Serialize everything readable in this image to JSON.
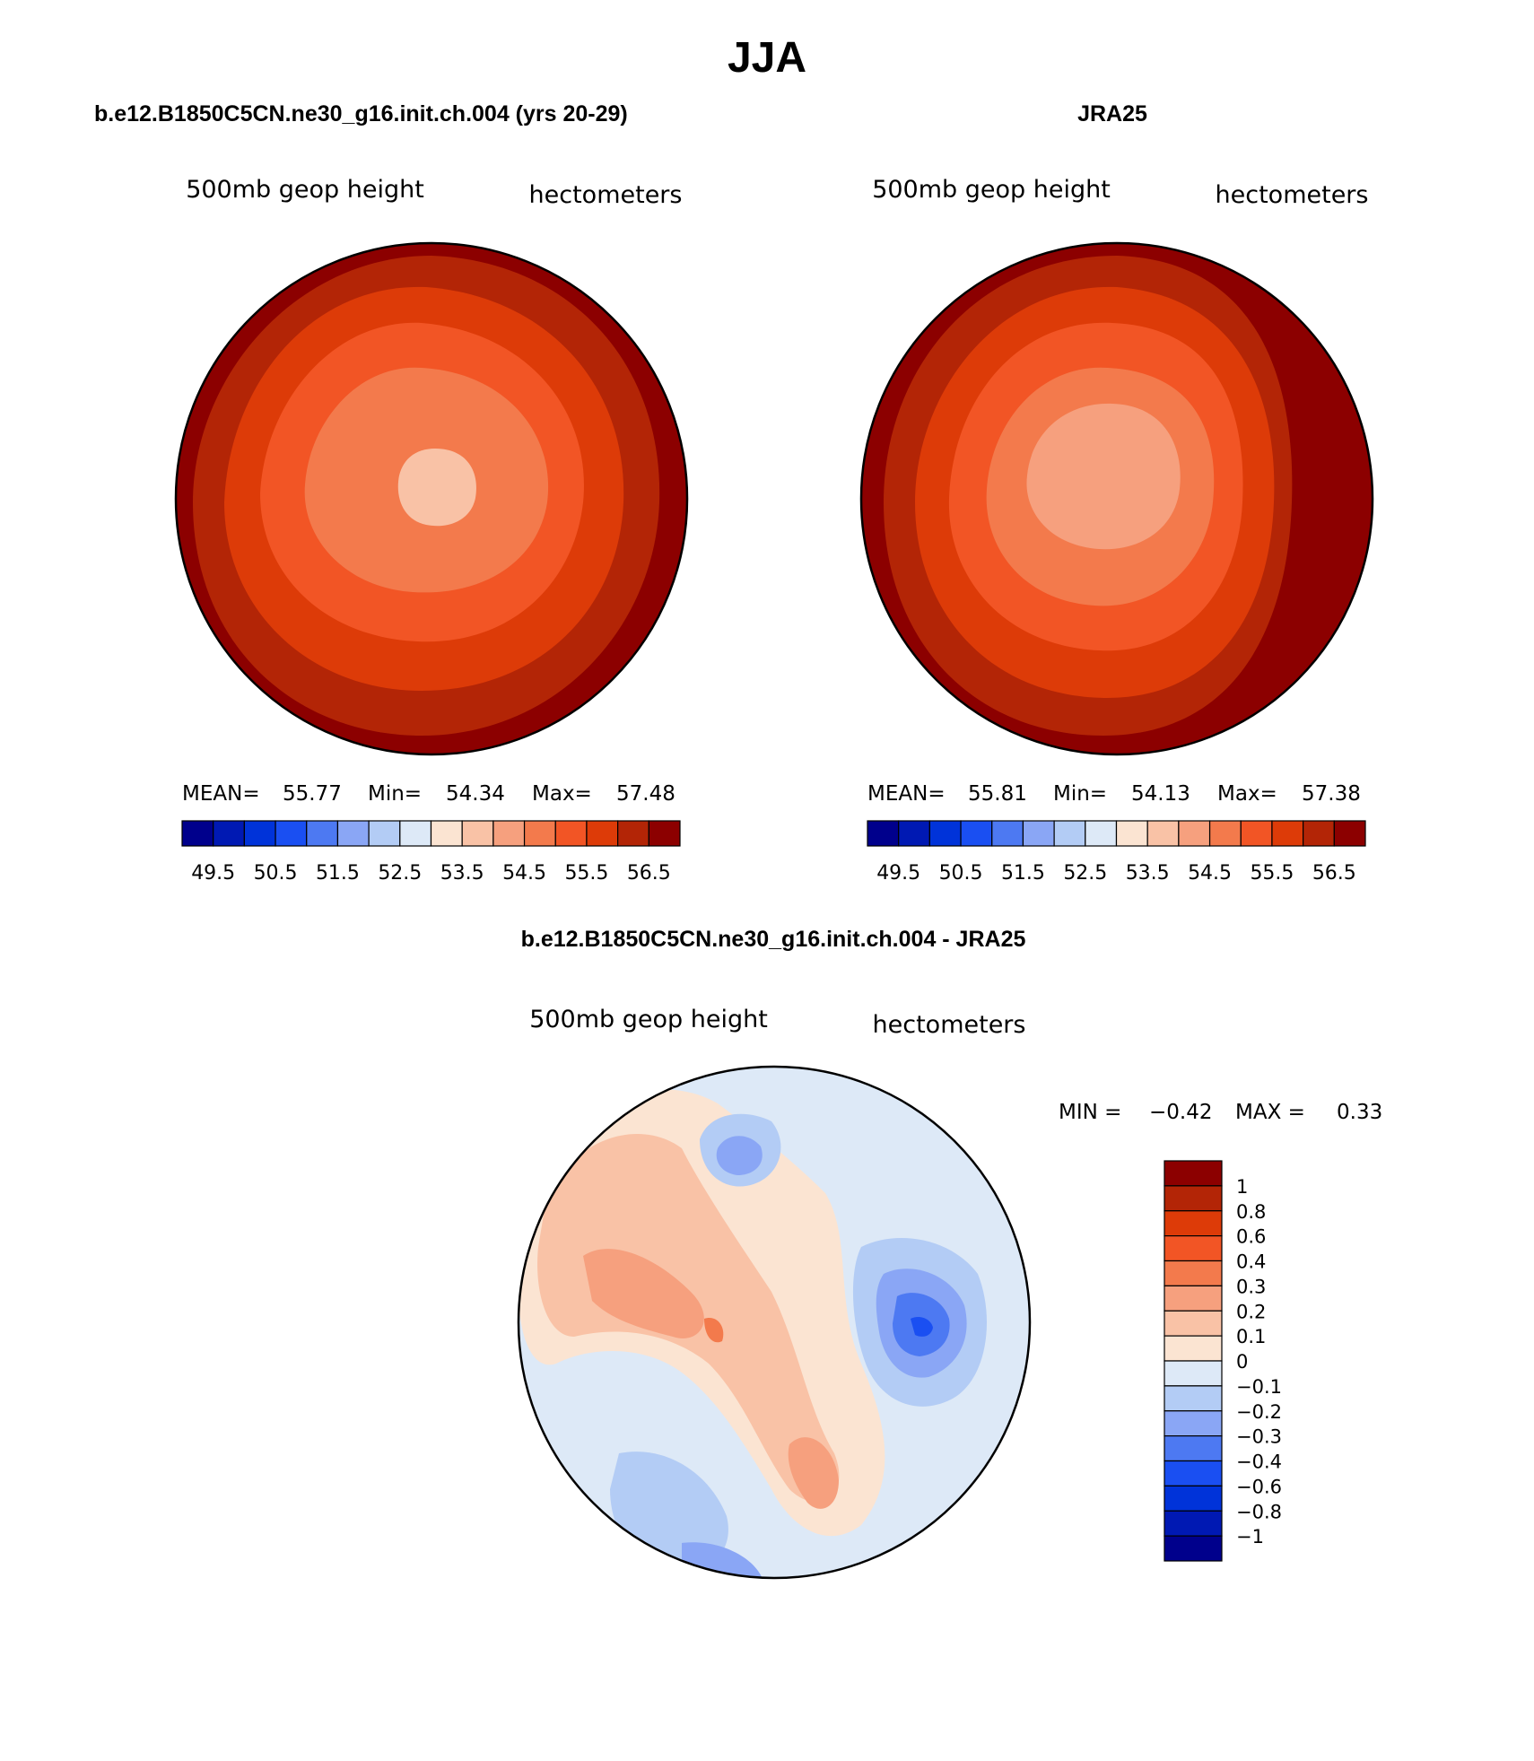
{
  "figure": {
    "season": "JJA",
    "top_left_title": "b.e12.B1850C5CN.ne30_g16.init.ch.004 (yrs 20-29)",
    "top_right_title": "JRA25",
    "diff_title": "b.e12.B1850C5CN.ne30_g16.init.ch.004 - JRA25"
  },
  "panels": {
    "model": {
      "variable": "500mb geop height",
      "units": "hectometers",
      "stats": {
        "mean_label": "MEAN=",
        "mean": "55.77",
        "min_label": "Min=",
        "min": "54.34",
        "max_label": "Max=",
        "max": "57.48"
      }
    },
    "obs": {
      "variable": "500mb geop height",
      "units": "hectometers",
      "stats": {
        "mean_label": "MEAN=",
        "mean": "55.81",
        "min_label": "Min=",
        "min": "54.13",
        "max_label": "Max=",
        "max": "57.38"
      }
    },
    "diff": {
      "variable": "500mb geop height",
      "units": "hectometers",
      "stats": {
        "min_label": "MIN =",
        "min": "−0.42",
        "max_label": "MAX =",
        "max": "0.33"
      }
    }
  },
  "colorbar_horizontal": {
    "colors": [
      "#00008c",
      "#0019b3",
      "#0033d9",
      "#1a4ff2",
      "#4d79f2",
      "#8aa6f5",
      "#b3ccf5",
      "#dde9f7",
      "#fbe4d2",
      "#f9c2a6",
      "#f6a07e",
      "#f37a4c",
      "#f25525",
      "#dd3b08",
      "#b32506",
      "#8c0000"
    ],
    "tick_labels": [
      "49.5",
      "50.5",
      "51.5",
      "52.5",
      "53.5",
      "54.5",
      "55.5",
      "56.5"
    ]
  },
  "colorbar_vertical": {
    "colors": [
      "#8c0000",
      "#b32506",
      "#dd3b08",
      "#f25525",
      "#f37a4c",
      "#f6a07e",
      "#f9c2a6",
      "#fbe4d2",
      "#dde9f7",
      "#b3ccf5",
      "#8aa6f5",
      "#4d79f2",
      "#1a4ff2",
      "#0033d9",
      "#0019b3",
      "#00008c"
    ],
    "tick_labels": [
      "1",
      "0.8",
      "0.6",
      "0.4",
      "0.3",
      "0.2",
      "0.1",
      "0",
      "−0.1",
      "−0.2",
      "−0.3",
      "−0.4",
      "−0.6",
      "−0.8",
      "−1"
    ]
  }
}
